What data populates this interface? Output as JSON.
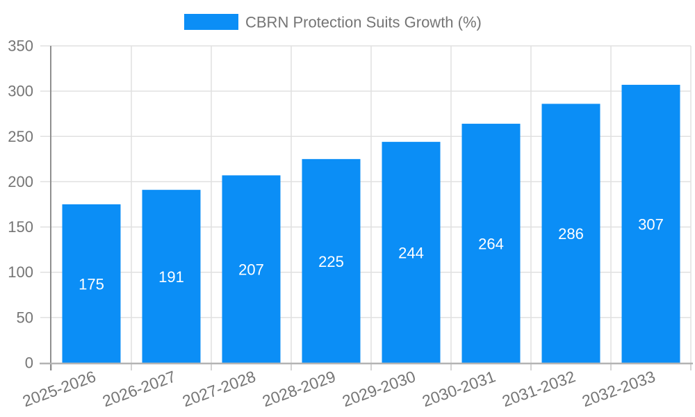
{
  "chart_data": {
    "type": "bar",
    "legend_label": "CBRN Protection Suits Growth (%)",
    "categories": [
      "2025-2026",
      "2026-2027",
      "2027-2028",
      "2028-2029",
      "2029-2030",
      "2030-2031",
      "2031-2032",
      "2032-2033"
    ],
    "values": [
      175,
      191,
      207,
      225,
      244,
      264,
      286,
      307
    ],
    "ylim": [
      0,
      350
    ],
    "yticks": [
      0,
      50,
      100,
      150,
      200,
      250,
      300,
      350
    ],
    "xlabel": "",
    "ylabel": "",
    "grid": true,
    "legend_position": "top-center",
    "x_label_rotation_deg": -20,
    "colors": {
      "bar": "#0b8ef6",
      "value_label": "#ffffff",
      "axis_text": "#757575",
      "gridline": "#e0e0e0",
      "y_axis_line": "#8f8f8f",
      "x_axis_line": "#b3b3b3"
    }
  }
}
